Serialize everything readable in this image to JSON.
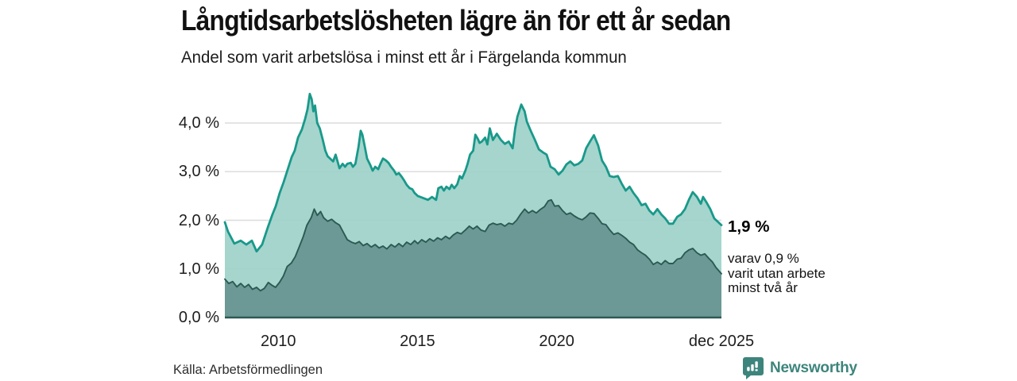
{
  "header": {
    "title": "Långtidsarbetslösheten lägre än för ett år sedan",
    "subtitle": "Andel som varit arbetslösa i minst ett år i Färgelanda kommun"
  },
  "annotations": {
    "total_label": "1,9 %",
    "two_year_lines": [
      "varav 0,9 %",
      "varit utan arbete",
      "minst två år"
    ]
  },
  "footer": {
    "source": "Källa: Arbetsförmedlingen",
    "brand": "Newsworthy",
    "brand_icon": "bar-chart-speech-bubble-icon"
  },
  "colors": {
    "total_line": "#19998a",
    "total_fill": "#9bd0c8",
    "two_year_line": "#2b5a53",
    "two_year_fill": "#679490",
    "gridline": "#dcdcdc",
    "baseline": "#2b5a53",
    "brand_teal": "#3d857c",
    "text": "#1e1e1e"
  },
  "chart_data": {
    "type": "area",
    "title": "Långtidsarbetslösheten lägre än för ett år sedan",
    "subtitle": "Andel som varit arbetslösa i minst ett år i Färgelanda kommun",
    "unit": "%",
    "grid": "horizontal",
    "legend": "none",
    "x_domain": [
      2008.08,
      2025.92
    ],
    "ylim": [
      0,
      4.7
    ],
    "y_ticks": [
      {
        "label": "0,0 %",
        "value": 0
      },
      {
        "label": "1,0 %",
        "value": 1
      },
      {
        "label": "2,0 %",
        "value": 2
      },
      {
        "label": "3,0 %",
        "value": 3
      },
      {
        "label": "4,0 %",
        "value": 4
      }
    ],
    "x_ticks": [
      {
        "label": "2010",
        "year": 2010
      },
      {
        "label": "2015",
        "year": 2015
      },
      {
        "label": "2020",
        "year": 2020
      },
      {
        "label": "dec 2025",
        "year": 2025.92
      }
    ],
    "series": [
      {
        "name": "Arbetslösa minst ett år",
        "end_value_label": "1,9 %",
        "points": [
          [
            2008.08,
            1.96
          ],
          [
            2008.19,
            1.77
          ],
          [
            2008.42,
            1.52
          ],
          [
            2008.65,
            1.58
          ],
          [
            2008.85,
            1.5
          ],
          [
            2009.05,
            1.58
          ],
          [
            2009.22,
            1.36
          ],
          [
            2009.42,
            1.5
          ],
          [
            2009.62,
            1.85
          ],
          [
            2009.79,
            2.12
          ],
          [
            2009.91,
            2.29
          ],
          [
            2010.05,
            2.56
          ],
          [
            2010.19,
            2.78
          ],
          [
            2010.34,
            3.05
          ],
          [
            2010.48,
            3.3
          ],
          [
            2010.59,
            3.43
          ],
          [
            2010.71,
            3.7
          ],
          [
            2010.85,
            3.87
          ],
          [
            2010.96,
            4.08
          ],
          [
            2011.05,
            4.28
          ],
          [
            2011.13,
            4.6
          ],
          [
            2011.2,
            4.49
          ],
          [
            2011.26,
            4.24
          ],
          [
            2011.32,
            4.36
          ],
          [
            2011.4,
            4.0
          ],
          [
            2011.49,
            3.89
          ],
          [
            2011.6,
            3.65
          ],
          [
            2011.69,
            3.43
          ],
          [
            2011.77,
            3.32
          ],
          [
            2011.97,
            3.21
          ],
          [
            2012.06,
            3.35
          ],
          [
            2012.2,
            3.07
          ],
          [
            2012.31,
            3.16
          ],
          [
            2012.4,
            3.1
          ],
          [
            2012.48,
            3.16
          ],
          [
            2012.6,
            3.18
          ],
          [
            2012.68,
            3.1
          ],
          [
            2012.77,
            3.16
          ],
          [
            2012.88,
            3.51
          ],
          [
            2012.96,
            3.84
          ],
          [
            2013.02,
            3.76
          ],
          [
            2013.11,
            3.51
          ],
          [
            2013.19,
            3.27
          ],
          [
            2013.31,
            3.13
          ],
          [
            2013.39,
            3.02
          ],
          [
            2013.48,
            3.1
          ],
          [
            2013.59,
            3.05
          ],
          [
            2013.67,
            3.16
          ],
          [
            2013.76,
            3.27
          ],
          [
            2013.87,
            3.23
          ],
          [
            2013.96,
            3.18
          ],
          [
            2014.05,
            3.1
          ],
          [
            2014.16,
            3.02
          ],
          [
            2014.24,
            2.94
          ],
          [
            2014.33,
            2.97
          ],
          [
            2014.44,
            2.89
          ],
          [
            2014.53,
            2.81
          ],
          [
            2014.61,
            2.73
          ],
          [
            2014.72,
            2.66
          ],
          [
            2014.81,
            2.64
          ],
          [
            2014.9,
            2.56
          ],
          [
            2015.01,
            2.5
          ],
          [
            2015.1,
            2.48
          ],
          [
            2015.24,
            2.45
          ],
          [
            2015.38,
            2.42
          ],
          [
            2015.52,
            2.48
          ],
          [
            2015.67,
            2.42
          ],
          [
            2015.75,
            2.66
          ],
          [
            2015.86,
            2.69
          ],
          [
            2015.95,
            2.61
          ],
          [
            2016.04,
            2.69
          ],
          [
            2016.15,
            2.64
          ],
          [
            2016.23,
            2.73
          ],
          [
            2016.32,
            2.66
          ],
          [
            2016.43,
            2.74
          ],
          [
            2016.52,
            2.91
          ],
          [
            2016.6,
            2.86
          ],
          [
            2016.72,
            3.02
          ],
          [
            2016.8,
            3.16
          ],
          [
            2016.89,
            3.35
          ],
          [
            2017.0,
            3.43
          ],
          [
            2017.08,
            3.76
          ],
          [
            2017.17,
            3.67
          ],
          [
            2017.23,
            3.59
          ],
          [
            2017.31,
            3.62
          ],
          [
            2017.43,
            3.7
          ],
          [
            2017.51,
            3.56
          ],
          [
            2017.6,
            3.89
          ],
          [
            2017.71,
            3.65
          ],
          [
            2017.85,
            3.78
          ],
          [
            2018.0,
            3.65
          ],
          [
            2018.14,
            3.57
          ],
          [
            2018.28,
            3.62
          ],
          [
            2018.42,
            3.48
          ],
          [
            2018.51,
            3.89
          ],
          [
            2018.59,
            4.13
          ],
          [
            2018.73,
            4.38
          ],
          [
            2018.85,
            4.24
          ],
          [
            2018.93,
            4.03
          ],
          [
            2019.07,
            3.84
          ],
          [
            2019.22,
            3.65
          ],
          [
            2019.36,
            3.46
          ],
          [
            2019.5,
            3.4
          ],
          [
            2019.64,
            3.35
          ],
          [
            2019.78,
            3.1
          ],
          [
            2019.93,
            3.05
          ],
          [
            2020.07,
            2.94
          ],
          [
            2020.21,
            3.02
          ],
          [
            2020.35,
            3.15
          ],
          [
            2020.49,
            3.21
          ],
          [
            2020.63,
            3.13
          ],
          [
            2020.78,
            3.16
          ],
          [
            2020.92,
            3.23
          ],
          [
            2021.06,
            3.48
          ],
          [
            2021.2,
            3.62
          ],
          [
            2021.34,
            3.75
          ],
          [
            2021.49,
            3.54
          ],
          [
            2021.63,
            3.23
          ],
          [
            2021.77,
            3.1
          ],
          [
            2021.91,
            2.91
          ],
          [
            2022.05,
            2.89
          ],
          [
            2022.2,
            2.91
          ],
          [
            2022.34,
            2.75
          ],
          [
            2022.48,
            2.61
          ],
          [
            2022.62,
            2.69
          ],
          [
            2022.76,
            2.56
          ],
          [
            2022.91,
            2.45
          ],
          [
            2023.05,
            2.31
          ],
          [
            2023.19,
            2.34
          ],
          [
            2023.33,
            2.2
          ],
          [
            2023.47,
            2.12
          ],
          [
            2023.62,
            2.23
          ],
          [
            2023.76,
            2.12
          ],
          [
            2023.9,
            2.04
          ],
          [
            2024.04,
            1.93
          ],
          [
            2024.18,
            1.93
          ],
          [
            2024.33,
            2.07
          ],
          [
            2024.47,
            2.12
          ],
          [
            2024.61,
            2.23
          ],
          [
            2024.75,
            2.42
          ],
          [
            2024.89,
            2.58
          ],
          [
            2025.04,
            2.48
          ],
          [
            2025.18,
            2.34
          ],
          [
            2025.26,
            2.48
          ],
          [
            2025.38,
            2.37
          ],
          [
            2025.52,
            2.23
          ],
          [
            2025.66,
            2.04
          ],
          [
            2025.92,
            1.9
          ]
        ]
      },
      {
        "name": "varav utan arbete minst två år",
        "end_value_label": "0,9 %",
        "points": [
          [
            2008.08,
            0.79
          ],
          [
            2008.22,
            0.7
          ],
          [
            2008.36,
            0.74
          ],
          [
            2008.51,
            0.63
          ],
          [
            2008.65,
            0.7
          ],
          [
            2008.79,
            0.62
          ],
          [
            2008.93,
            0.68
          ],
          [
            2009.07,
            0.58
          ],
          [
            2009.22,
            0.62
          ],
          [
            2009.36,
            0.55
          ],
          [
            2009.5,
            0.6
          ],
          [
            2009.64,
            0.72
          ],
          [
            2009.78,
            0.66
          ],
          [
            2009.9,
            0.62
          ],
          [
            2010.04,
            0.72
          ],
          [
            2010.18,
            0.85
          ],
          [
            2010.32,
            1.05
          ],
          [
            2010.47,
            1.12
          ],
          [
            2010.61,
            1.25
          ],
          [
            2010.75,
            1.45
          ],
          [
            2010.89,
            1.65
          ],
          [
            2011.03,
            1.9
          ],
          [
            2011.18,
            2.05
          ],
          [
            2011.29,
            2.23
          ],
          [
            2011.4,
            2.1
          ],
          [
            2011.52,
            2.18
          ],
          [
            2011.63,
            2.05
          ],
          [
            2011.77,
            1.98
          ],
          [
            2011.92,
            2.02
          ],
          [
            2012.06,
            1.95
          ],
          [
            2012.2,
            1.9
          ],
          [
            2012.34,
            1.75
          ],
          [
            2012.48,
            1.6
          ],
          [
            2012.63,
            1.55
          ],
          [
            2012.77,
            1.52
          ],
          [
            2012.91,
            1.56
          ],
          [
            2013.05,
            1.48
          ],
          [
            2013.19,
            1.52
          ],
          [
            2013.34,
            1.45
          ],
          [
            2013.48,
            1.5
          ],
          [
            2013.62,
            1.43
          ],
          [
            2013.76,
            1.47
          ],
          [
            2013.9,
            1.41
          ],
          [
            2014.05,
            1.5
          ],
          [
            2014.19,
            1.45
          ],
          [
            2014.33,
            1.52
          ],
          [
            2014.47,
            1.46
          ],
          [
            2014.61,
            1.55
          ],
          [
            2014.76,
            1.5
          ],
          [
            2014.9,
            1.58
          ],
          [
            2015.01,
            1.52
          ],
          [
            2015.15,
            1.6
          ],
          [
            2015.3,
            1.55
          ],
          [
            2015.44,
            1.62
          ],
          [
            2015.58,
            1.57
          ],
          [
            2015.72,
            1.64
          ],
          [
            2015.86,
            1.6
          ],
          [
            2016.01,
            1.67
          ],
          [
            2016.15,
            1.62
          ],
          [
            2016.29,
            1.7
          ],
          [
            2016.43,
            1.75
          ],
          [
            2016.57,
            1.72
          ],
          [
            2016.72,
            1.8
          ],
          [
            2016.86,
            1.88
          ],
          [
            2017.0,
            1.82
          ],
          [
            2017.14,
            1.88
          ],
          [
            2017.28,
            1.8
          ],
          [
            2017.43,
            1.77
          ],
          [
            2017.57,
            1.9
          ],
          [
            2017.71,
            1.94
          ],
          [
            2017.85,
            1.91
          ],
          [
            2018.0,
            1.93
          ],
          [
            2018.14,
            1.88
          ],
          [
            2018.28,
            1.94
          ],
          [
            2018.42,
            1.92
          ],
          [
            2018.56,
            2.0
          ],
          [
            2018.7,
            2.12
          ],
          [
            2018.85,
            2.23
          ],
          [
            2018.99,
            2.15
          ],
          [
            2019.13,
            2.2
          ],
          [
            2019.27,
            2.15
          ],
          [
            2019.41,
            2.22
          ],
          [
            2019.56,
            2.28
          ],
          [
            2019.7,
            2.4
          ],
          [
            2019.81,
            2.42
          ],
          [
            2019.93,
            2.29
          ],
          [
            2020.07,
            2.3
          ],
          [
            2020.21,
            2.2
          ],
          [
            2020.35,
            2.12
          ],
          [
            2020.49,
            2.15
          ],
          [
            2020.63,
            2.09
          ],
          [
            2020.78,
            2.04
          ],
          [
            2020.92,
            2.01
          ],
          [
            2021.06,
            2.07
          ],
          [
            2021.2,
            2.15
          ],
          [
            2021.34,
            2.14
          ],
          [
            2021.49,
            2.04
          ],
          [
            2021.63,
            1.93
          ],
          [
            2021.77,
            1.91
          ],
          [
            2021.91,
            1.8
          ],
          [
            2022.05,
            1.71
          ],
          [
            2022.2,
            1.74
          ],
          [
            2022.34,
            1.69
          ],
          [
            2022.48,
            1.63
          ],
          [
            2022.62,
            1.55
          ],
          [
            2022.76,
            1.5
          ],
          [
            2022.91,
            1.39
          ],
          [
            2023.05,
            1.33
          ],
          [
            2023.19,
            1.28
          ],
          [
            2023.33,
            1.2
          ],
          [
            2023.47,
            1.09
          ],
          [
            2023.62,
            1.14
          ],
          [
            2023.76,
            1.09
          ],
          [
            2023.9,
            1.17
          ],
          [
            2024.04,
            1.11
          ],
          [
            2024.18,
            1.11
          ],
          [
            2024.33,
            1.2
          ],
          [
            2024.47,
            1.22
          ],
          [
            2024.61,
            1.33
          ],
          [
            2024.75,
            1.39
          ],
          [
            2024.89,
            1.42
          ],
          [
            2025.04,
            1.33
          ],
          [
            2025.18,
            1.28
          ],
          [
            2025.32,
            1.31
          ],
          [
            2025.46,
            1.22
          ],
          [
            2025.6,
            1.14
          ],
          [
            2025.72,
            1.03
          ],
          [
            2025.92,
            0.9
          ]
        ]
      }
    ]
  }
}
